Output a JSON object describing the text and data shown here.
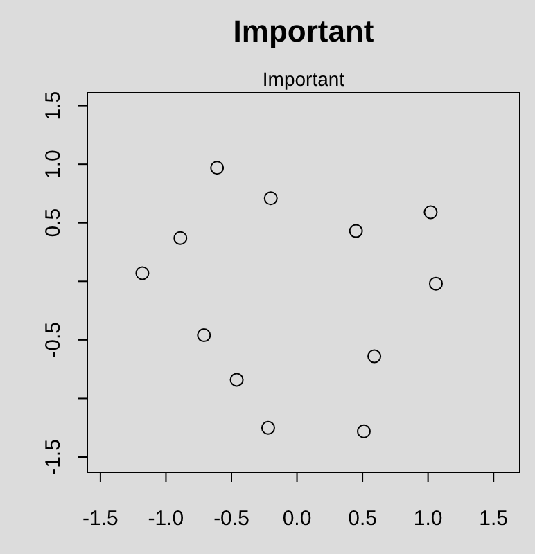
{
  "chart_data": {
    "type": "scatter",
    "title": "Important",
    "subtitle": "Important",
    "x": [
      -0.61,
      -0.2,
      -0.89,
      -1.18,
      0.45,
      1.02,
      1.06,
      -0.71,
      -0.46,
      -0.22,
      0.59,
      0.51
    ],
    "values": [
      0.97,
      0.71,
      0.37,
      0.07,
      0.43,
      0.59,
      -0.02,
      -0.46,
      -0.84,
      -1.25,
      -0.64,
      -1.28
    ],
    "color": "#000000",
    "marker": "circle",
    "xlim": [
      -1.6,
      1.7
    ],
    "xticks": [
      -1.5,
      {
        "value": -1,
        "label": "-1.0"
      },
      -0.5,
      {
        "value": 0,
        "label": "0.0"
      },
      0.5,
      {
        "value": 1,
        "label": "1.0"
      },
      1.5
    ],
    "ylim": [
      -1.63,
      1.61
    ],
    "yticks": [
      -1.5,
      {
        "value": -1.0,
        "label": null
      },
      -0.5,
      {
        "value": 0.0,
        "label": null
      },
      0.5,
      {
        "value": 1,
        "label": "1.0"
      },
      1.5
    ]
  }
}
